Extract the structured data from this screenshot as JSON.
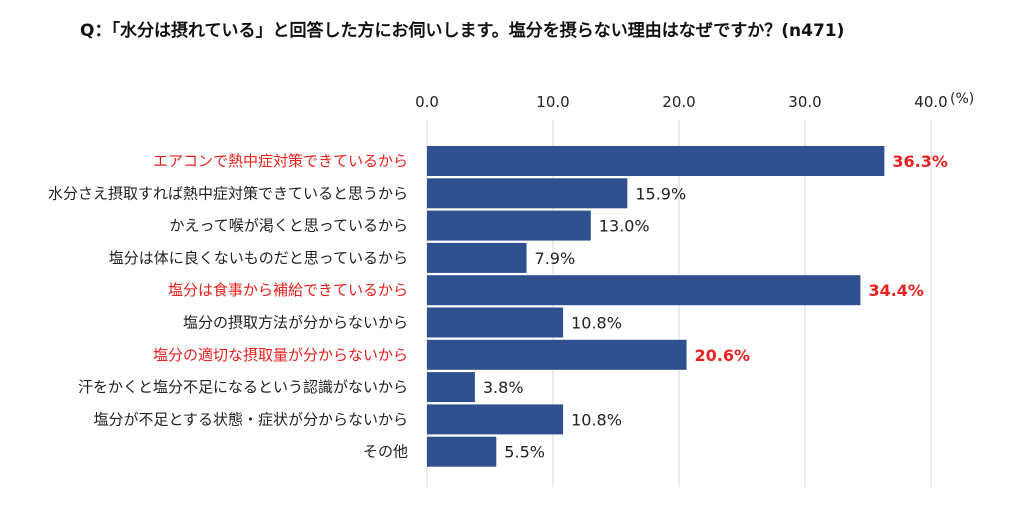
{
  "chart_data": {
    "type": "bar",
    "orientation": "horizontal",
    "title": "Q：「水分は摂れている」と回答した方にお伺いします。塩分を摂らない理由はなぜですか？(n471)",
    "unit_label": "(%)",
    "xlim": [
      0,
      40
    ],
    "ticks": [
      "0.0",
      "10.0",
      "20.0",
      "30.0",
      "40.0"
    ],
    "tick_values": [
      0,
      10,
      20,
      30,
      40
    ],
    "grid": true,
    "bar_color": "#2f4f8f",
    "highlight_color": "#e8231f",
    "normal_color": "#222222",
    "categories": [
      "エアコンで熱中症対策できているから",
      "水分さえ摂取すれば熱中症対策できていると思うから",
      "かえって喉が渇くと思っているから",
      "塩分は体に良くないものだと思っているから",
      "塩分は食事から補給できているから",
      "塩分の摂取方法が分からないから",
      "塩分の適切な摂取量が分からないから",
      "汗をかくと塩分不足になるという認識がないから",
      "塩分が不足とする状態・症状が分からないから",
      "その他"
    ],
    "values": [
      36.3,
      15.9,
      13.0,
      7.9,
      34.4,
      10.8,
      20.6,
      3.8,
      10.8,
      5.5
    ],
    "value_labels": [
      "36.3%",
      "15.9%",
      "13.0%",
      "7.9%",
      "34.4%",
      "10.8%",
      "20.6%",
      "3.8%",
      "10.8%",
      "5.5%"
    ],
    "highlighted": [
      true,
      false,
      false,
      false,
      true,
      false,
      true,
      false,
      false,
      false
    ]
  }
}
